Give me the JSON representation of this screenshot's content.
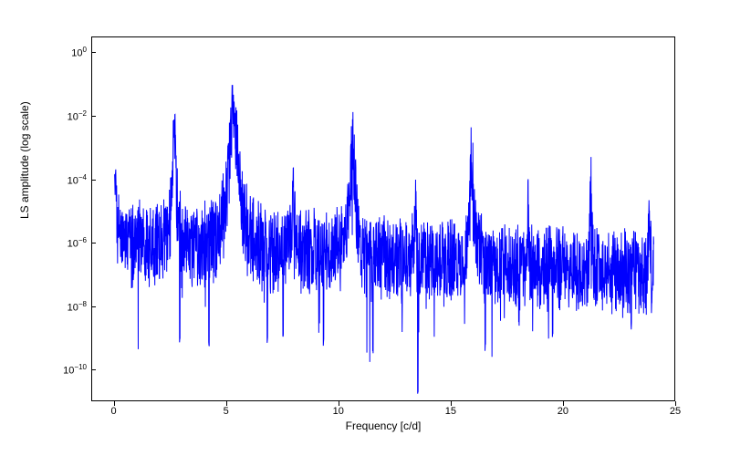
{
  "chart": {
    "type": "line",
    "xlabel": "Frequency [c/d]",
    "ylabel": "LS amplitude (log scale)",
    "xlim": [
      -1,
      25
    ],
    "ylim_log": [
      -11,
      0.5
    ],
    "xtick_step": 5,
    "xticks": [
      0,
      5,
      10,
      15,
      20,
      25
    ],
    "yticks_exp": [
      -10,
      -8,
      -6,
      -4,
      -2,
      0
    ],
    "line_color": "#0000ff",
    "line_width": 1.0,
    "background_color": "#ffffff",
    "border_color": "#000000",
    "label_fontsize": 12,
    "tick_fontsize": 11,
    "scale_y": "log",
    "base_noise_level_log": -6.0,
    "noise_amplitude_log": 1.5,
    "peaks": [
      {
        "freq": 0.05,
        "height_log": -3.8,
        "width": 0.08
      },
      {
        "freq": 2.65,
        "height_log": -1.4,
        "width": 0.12
      },
      {
        "freq": 5.3,
        "height_log": -0.1,
        "width": 0.25
      },
      {
        "freq": 7.95,
        "height_log": -3.2,
        "width": 0.06
      },
      {
        "freq": 10.6,
        "height_log": -1.2,
        "width": 0.15
      },
      {
        "freq": 13.4,
        "height_log": -3.8,
        "width": 0.03
      },
      {
        "freq": 15.9,
        "height_log": -2.0,
        "width": 0.1
      },
      {
        "freq": 18.4,
        "height_log": -4.0,
        "width": 0.03
      },
      {
        "freq": 21.2,
        "height_log": -3.4,
        "width": 0.05
      },
      {
        "freq": 23.8,
        "height_log": -4.3,
        "width": 0.03
      }
    ],
    "dips": [
      {
        "freq": 2.9,
        "depth_log": -9.0
      },
      {
        "freq": 4.2,
        "depth_log": -9.2
      },
      {
        "freq": 6.8,
        "depth_log": -9.0
      },
      {
        "freq": 7.5,
        "depth_log": -8.8
      },
      {
        "freq": 9.3,
        "depth_log": -9.1
      },
      {
        "freq": 11.5,
        "depth_log": -9.4
      },
      {
        "freq": 13.5,
        "depth_log": -10.7
      },
      {
        "freq": 16.5,
        "depth_log": -9.3
      },
      {
        "freq": 18.0,
        "depth_log": -8.5
      },
      {
        "freq": 19.5,
        "depth_log": -8.8
      },
      {
        "freq": 23.0,
        "depth_log": -8.6
      }
    ],
    "noise_decay_per_x": 0.04
  }
}
